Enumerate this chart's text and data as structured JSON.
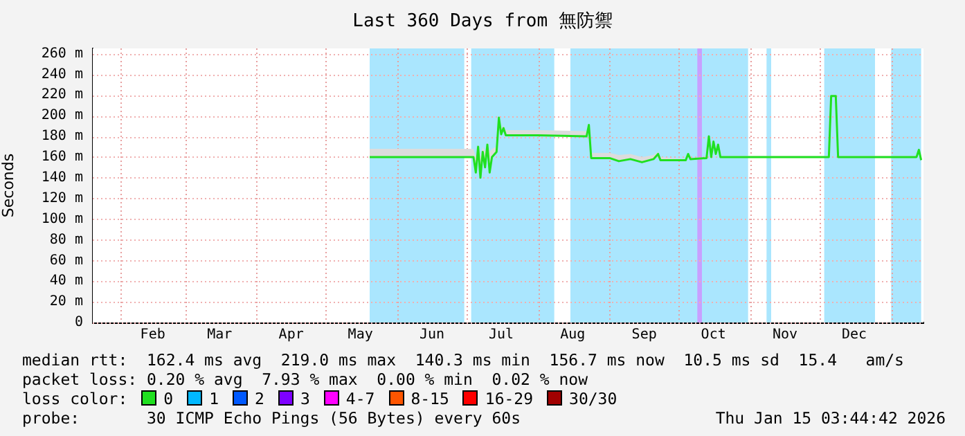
{
  "chart_data": {
    "type": "line",
    "title": "Last 360 Days from 無防禦",
    "ylabel": "Seconds",
    "xlim": [
      "2025-01-20",
      "2026-01-15"
    ],
    "xticks": [
      {
        "value": "2025-02-01",
        "label": null
      },
      {
        "value": "2025-02-15",
        "label": "Feb"
      },
      {
        "value": "2025-03-01",
        "label": null
      },
      {
        "value": "2025-03-16",
        "label": "Mar"
      },
      {
        "value": "2025-04-01",
        "label": null
      },
      {
        "value": "2025-04-16",
        "label": "Apr"
      },
      {
        "value": "2025-05-01",
        "label": null
      },
      {
        "value": "2025-05-16",
        "label": "May"
      },
      {
        "value": "2025-06-01",
        "label": null
      },
      {
        "value": "2025-06-16",
        "label": "Jun"
      },
      {
        "value": "2025-07-01",
        "label": null
      },
      {
        "value": "2025-07-16",
        "label": "Jul"
      },
      {
        "value": "2025-08-01",
        "label": null
      },
      {
        "value": "2025-08-16",
        "label": "Aug"
      },
      {
        "value": "2025-09-01",
        "label": null
      },
      {
        "value": "2025-09-16",
        "label": "Sep"
      },
      {
        "value": "2025-10-01",
        "label": null
      },
      {
        "value": "2025-10-16",
        "label": "Oct"
      },
      {
        "value": "2025-11-01",
        "label": null
      },
      {
        "value": "2025-11-16",
        "label": "Nov"
      },
      {
        "value": "2025-12-01",
        "label": null
      },
      {
        "value": "2025-12-16",
        "label": "Dec"
      },
      {
        "value": "2026-01-01",
        "label": null
      }
    ],
    "ylim": [
      0,
      265
    ],
    "yticks": [
      0,
      {
        "value": 20,
        "label": "20 m"
      },
      {
        "value": 40,
        "label": "40 m"
      },
      {
        "value": 60,
        "label": "60 m"
      },
      {
        "value": 80,
        "label": "80 m"
      },
      {
        "value": 100,
        "label": "100 m"
      },
      {
        "value": 120,
        "label": "120 m"
      },
      {
        "value": 140,
        "label": "140 m"
      },
      {
        "value": 160,
        "label": "160 m"
      },
      {
        "value": 180,
        "label": "180 m"
      },
      {
        "value": 200,
        "label": "200 m"
      },
      {
        "value": 220,
        "label": "220 m"
      },
      {
        "value": 240,
        "label": "240 m"
      },
      {
        "value": 260,
        "label": "260 m"
      }
    ],
    "x": [
      "2025-05-20",
      "2025-06-15",
      "2025-07-04",
      "2025-07-05",
      "2025-07-06",
      "2025-07-07",
      "2025-07-08",
      "2025-07-09",
      "2025-07-10",
      "2025-07-11",
      "2025-07-12",
      "2025-07-14",
      "2025-07-15",
      "2025-07-16",
      "2025-07-17",
      "2025-07-18",
      "2025-08-01",
      "2025-08-22",
      "2025-08-23",
      "2025-08-24",
      "2025-09-01",
      "2025-09-05",
      "2025-09-10",
      "2025-09-15",
      "2025-09-20",
      "2025-09-22",
      "2025-09-23",
      "2025-10-04",
      "2025-10-05",
      "2025-10-06",
      "2025-10-13",
      "2025-10-14",
      "2025-10-15",
      "2025-10-16",
      "2025-10-17",
      "2025-10-18",
      "2025-10-19",
      "2025-11-15",
      "2025-12-05",
      "2025-12-06",
      "2025-12-08",
      "2025-12-09",
      "2026-01-12",
      "2026-01-13",
      "2026-01-14"
    ],
    "series": [
      {
        "name": "0",
        "color": "#20e020",
        "values": [
          160,
          160,
          160,
          145,
          170,
          140,
          165,
          150,
          172,
          145,
          160,
          165,
          198,
          182,
          188,
          181,
          181,
          180,
          191,
          159,
          159,
          156,
          158,
          155,
          158,
          163,
          157,
          157,
          163,
          158,
          159,
          180,
          160,
          175,
          163,
          172,
          160,
          160,
          160,
          219,
          219,
          160,
          160,
          167,
          157
        ],
        "lower": [
          160,
          160,
          160,
          145,
          170,
          140,
          165,
          150,
          172,
          145,
          160,
          165,
          198,
          182,
          188,
          181,
          181,
          180,
          191,
          159,
          159,
          156,
          158,
          155,
          158,
          163,
          157,
          157,
          163,
          158,
          159,
          180,
          160,
          175,
          163,
          172,
          160,
          160,
          160,
          219,
          219,
          160,
          160,
          167,
          157
        ],
        "upper": [
          168,
          168,
          168,
          160,
          172,
          160,
          170,
          165,
          175,
          165,
          168,
          170,
          200,
          188,
          190,
          186,
          186,
          185,
          192,
          164,
          164,
          162,
          163,
          160,
          162,
          165,
          160,
          158,
          164,
          159,
          160,
          181,
          161,
          176,
          164,
          173,
          161,
          161,
          161,
          220,
          220,
          161,
          161,
          168,
          157
        ]
      },
      {
        "name": "1",
        "color": "#00b8ff",
        "values": [
          null,
          null,
          null,
          null,
          null,
          null,
          null,
          null,
          null,
          null,
          null,
          null,
          null,
          null,
          null,
          null,
          null,
          null,
          null,
          null,
          null,
          null,
          null,
          null,
          null,
          null,
          null,
          null,
          null,
          null,
          null,
          null,
          null,
          null,
          null,
          null,
          null,
          null,
          null,
          null,
          null,
          null,
          null,
          null,
          null
        ]
      },
      {
        "name": "2",
        "color": "#0059ff",
        "values": [
          null,
          null,
          null,
          null,
          null,
          null,
          null,
          null,
          null,
          null,
          null,
          null,
          null,
          null,
          null,
          null,
          null,
          null,
          null,
          null,
          null,
          null,
          null,
          null,
          null,
          null,
          null,
          null,
          null,
          null,
          null,
          null,
          null,
          null,
          null,
          null,
          null,
          null,
          null,
          null,
          null,
          null,
          null,
          null,
          null
        ]
      },
      {
        "name": "3",
        "color": "#7e00ff",
        "values": [
          null,
          null,
          null,
          null,
          null,
          null,
          null,
          null,
          null,
          null,
          null,
          null,
          null,
          null,
          null,
          null,
          null,
          null,
          null,
          null,
          null,
          null,
          null,
          null,
          null,
          null,
          null,
          null,
          null,
          null,
          null,
          null,
          null,
          null,
          null,
          null,
          null,
          null,
          null,
          null,
          null,
          null,
          null,
          null,
          null
        ]
      },
      {
        "name": "4-7",
        "color": "#ff00ff",
        "values": [
          null,
          null,
          null,
          null,
          null,
          null,
          null,
          null,
          null,
          null,
          null,
          null,
          null,
          null,
          null,
          null,
          null,
          null,
          null,
          null,
          null,
          null,
          null,
          null,
          null,
          null,
          null,
          null,
          null,
          null,
          null,
          null,
          null,
          null,
          null,
          null,
          null,
          null,
          null,
          null,
          null,
          null,
          null,
          null,
          null
        ]
      },
      {
        "name": "8-15",
        "color": "#ff5500",
        "values": [
          null,
          null,
          null,
          null,
          null,
          null,
          null,
          null,
          null,
          null,
          null,
          null,
          null,
          null,
          null,
          null,
          null,
          null,
          null,
          null,
          null,
          null,
          null,
          null,
          null,
          null,
          null,
          null,
          null,
          null,
          null,
          null,
          null,
          null,
          null,
          null,
          null,
          null,
          null,
          null,
          null,
          null,
          null,
          null,
          null
        ]
      },
      {
        "name": "16-29",
        "color": "#ff0000",
        "values": [
          null,
          null,
          null,
          null,
          null,
          null,
          null,
          null,
          null,
          null,
          null,
          null,
          null,
          null,
          null,
          null,
          null,
          null,
          null,
          null,
          null,
          null,
          null,
          null,
          null,
          null,
          null,
          null,
          null,
          null,
          null,
          null,
          null,
          null,
          null,
          null,
          null,
          null,
          null,
          null,
          null,
          null,
          null,
          null,
          null
        ]
      },
      {
        "name": "30/30",
        "color": "#a10000",
        "values": [
          null,
          null,
          null,
          null,
          null,
          null,
          null,
          null,
          null,
          null,
          null,
          null,
          null,
          null,
          null,
          null,
          null,
          null,
          null,
          null,
          null,
          null,
          null,
          null,
          null,
          null,
          null,
          null,
          null,
          null,
          null,
          null,
          null,
          null,
          null,
          null,
          null,
          null,
          null,
          null,
          null,
          null,
          null,
          null,
          null
        ]
      }
    ],
    "bands": [
      {
        "axis": "x",
        "from": "2025-05-20",
        "to": "2025-06-30",
        "color": "#aae6fe"
      },
      {
        "axis": "x",
        "from": "2025-07-03",
        "to": "2025-08-08",
        "color": "#aae6fe"
      },
      {
        "axis": "x",
        "from": "2025-08-15",
        "to": "2025-10-31",
        "color": "#aae6fe"
      },
      {
        "axis": "x",
        "from": "2025-11-08",
        "to": "2025-11-10",
        "color": "#aae6fe"
      },
      {
        "axis": "x",
        "from": "2025-12-03",
        "to": "2025-12-25",
        "color": "#aae6fe"
      },
      {
        "axis": "x",
        "from": "2026-01-01",
        "to": "2026-01-14",
        "color": "#aae6fe"
      },
      {
        "axis": "x",
        "from": "2025-10-09",
        "to": "2025-10-11",
        "color": "#c8a0ff"
      }
    ],
    "legend": "bottom",
    "legend_title": "loss color:",
    "grid": true,
    "marker": "none",
    "line_style": "solid",
    "annotations": [
      "median rtt:  162.4 ms avg  219.0 ms max  140.3 ms min  156.7 ms now  10.5 ms sd  15.4   am/s",
      "packet loss: 0.20 % avg  7.93 % max  0.00 % min  0.02 % now",
      "probe:       30 ICMP Echo Pings (56 Bytes) every 60s",
      "Thu Jan 15 03:44:42 2026"
    ]
  }
}
